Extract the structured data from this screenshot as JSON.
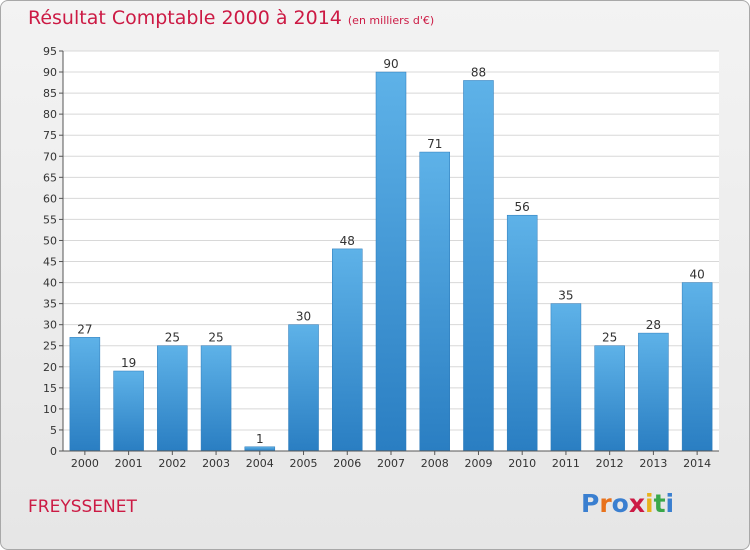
{
  "chart_data": {
    "type": "bar",
    "title": "Résultat Comptable 2000 à 2014",
    "unit": "(en milliers d'€)",
    "categories": [
      "2000",
      "2001",
      "2002",
      "2003",
      "2004",
      "2005",
      "2006",
      "2007",
      "2008",
      "2009",
      "2010",
      "2011",
      "2012",
      "2013",
      "2014"
    ],
    "values": [
      27,
      19,
      25,
      25,
      1,
      30,
      48,
      90,
      71,
      88,
      56,
      35,
      25,
      28,
      40
    ],
    "ylim": [
      0,
      95
    ],
    "ytick_step": 5,
    "xlabel": "",
    "ylabel": "",
    "grid": true,
    "bar_color_top": "#5eb2e8",
    "bar_color_bottom": "#2a7ec2"
  },
  "footer": {
    "commune": "FREYSSENET",
    "brand": "Proxiti"
  },
  "colors": {
    "title": "#cc1a44",
    "brand_letters": [
      "#3a7fd0",
      "#e8721c",
      "#3a7fd0",
      "#cc1a44",
      "#e8b21c",
      "#3aa84a",
      "#3a7fd0"
    ]
  }
}
